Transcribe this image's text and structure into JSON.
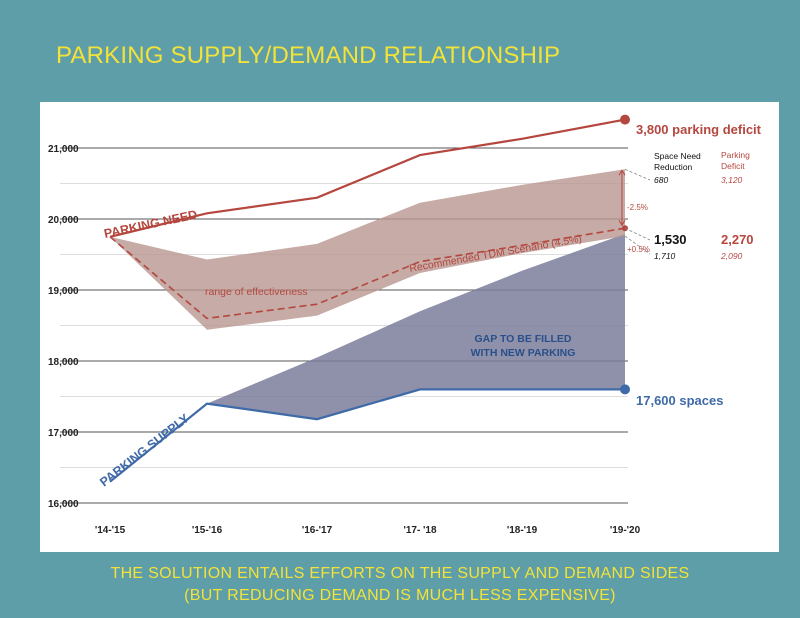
{
  "title": "PARKING SUPPLY/DEMAND RELATIONSHIP",
  "footer": {
    "line1": "THE SOLUTION ENTAILS EFFORTS ON THE SUPPLY AND DEMAND SIDES",
    "line2": "(BUT REDUCING DEMAND IS MUCH LESS EXPENSIVE)"
  },
  "colors": {
    "background": "#5e9ea8",
    "title": "#f2e23a",
    "need": "#b5473f",
    "supply": "#3f6aa8",
    "gap_fill": "#7a7e9a",
    "range_fill": "#b89690"
  },
  "chart_data": {
    "type": "line",
    "categories": [
      "'14-'15",
      "'15-'16",
      "'16-'17",
      "'17- '18",
      "'18-'19",
      "'19-'20"
    ],
    "y_ticks": [
      "16,000",
      "17,000",
      "18,000",
      "19,000",
      "20,000",
      "21,000"
    ],
    "ylim": [
      16000,
      21400
    ],
    "grid": true,
    "series": [
      {
        "name": "PARKING NEED",
        "style": "solid",
        "values": [
          19750,
          20080,
          20300,
          20900,
          21130,
          21400
        ]
      },
      {
        "name": "Recommended TDM Scenario (4.5%)",
        "style": "dashed",
        "values": [
          19750,
          18600,
          18800,
          19400,
          19630,
          19870
        ]
      },
      {
        "name": "PARKING SUPPLY",
        "style": "solid",
        "values": [
          16300,
          17400,
          17180,
          17600,
          17600,
          17600
        ]
      }
    ],
    "range_band": {
      "label": "range of effectiveness",
      "upper": [
        19750,
        19430,
        19650,
        20230,
        20480,
        20700
      ],
      "lower": [
        19750,
        18440,
        18640,
        19240,
        19520,
        19760
      ]
    },
    "gap_region": {
      "label_line1": "GAP TO BE FILLED",
      "label_line2": "WITH NEW PARKING",
      "upper": [
        null,
        17400,
        18050,
        18700,
        19270,
        19790
      ]
    },
    "endpoint_labels": {
      "deficit": "3,800 parking deficit",
      "supply": "17,600 spaces"
    },
    "side_table": {
      "col1_line1": "Space Need",
      "col1_line2": "Reduction",
      "col2_line1": "Parking",
      "col2_line2": "Deficit",
      "top_row": [
        "680",
        "3,120"
      ],
      "mid_row": [
        "1,530",
        "2,270"
      ],
      "bottom_row": [
        "1,710",
        "2,090"
      ]
    },
    "annotations": {
      "minus": "-2.5%",
      "plus": "+0.5%"
    }
  }
}
